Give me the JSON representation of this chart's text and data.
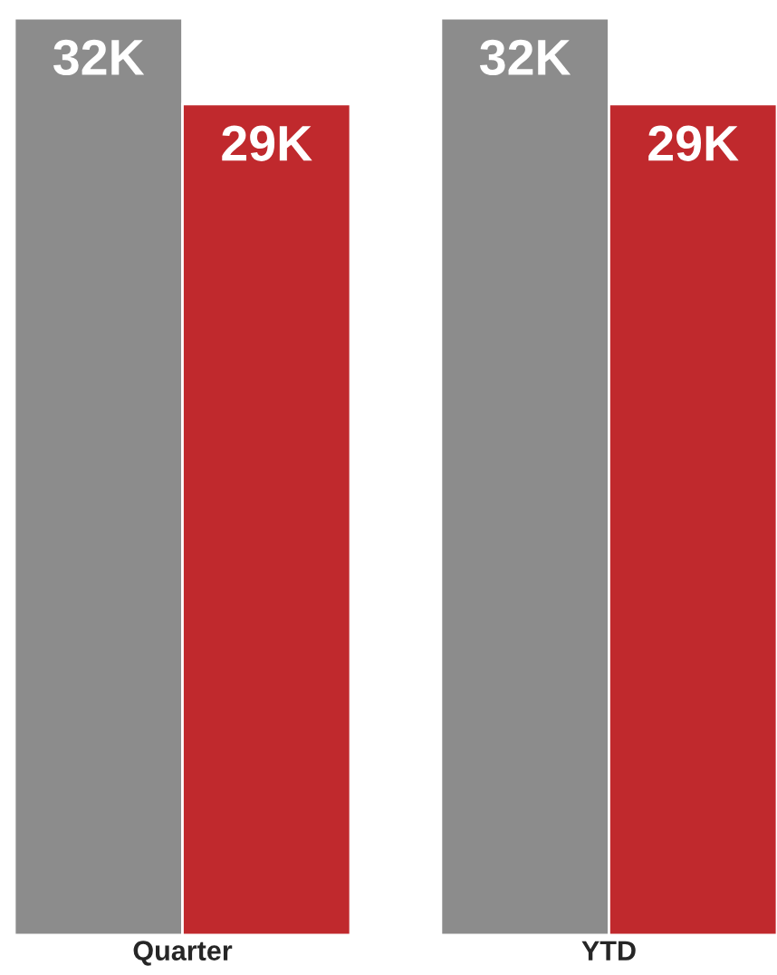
{
  "chart_data": {
    "type": "bar",
    "categories": [
      "Quarter",
      "YTD"
    ],
    "series": [
      {
        "color": "#8c8c8c",
        "values": [
          32,
          32
        ],
        "value_labels": [
          "32K",
          "32K"
        ]
      },
      {
        "color": "#c0292d",
        "values": [
          29,
          29
        ],
        "value_labels": [
          "29K",
          "29K"
        ]
      }
    ]
  }
}
